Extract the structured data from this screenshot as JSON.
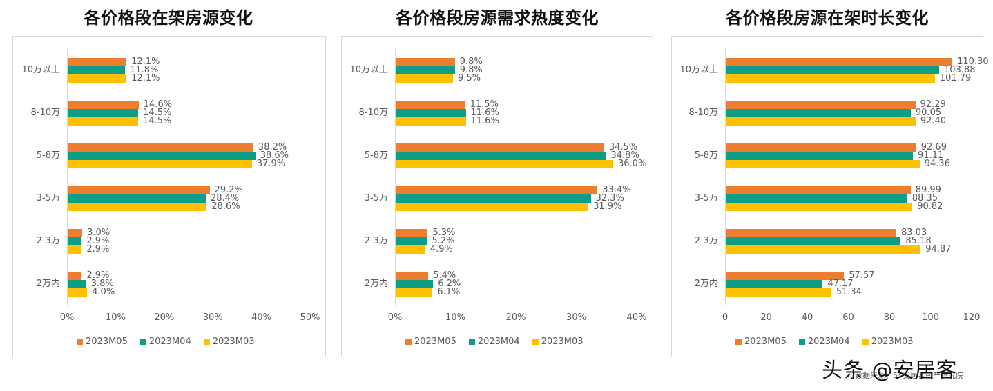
{
  "colors": {
    "2023M05": "#ED7D31",
    "2023M04": "#0E9E87",
    "2023M03": "#FFC000"
  },
  "charts": [
    {
      "title": "各价格段在架房源变化",
      "xticks": [
        "0%",
        "10%",
        "20%",
        "30%",
        "40%",
        "50%"
      ],
      "xmax": 50,
      "categories": [
        "10万以上",
        "8-10万",
        "5-8万",
        "3-5万",
        "2-3万",
        "2万内"
      ],
      "series": [
        {
          "name": "2023M05",
          "values": [
            12.1,
            14.6,
            38.2,
            29.2,
            3.0,
            2.9
          ],
          "labels": [
            "12.1%",
            "14.6%",
            "38.2%",
            "29.2%",
            "3.0%",
            "2.9%"
          ]
        },
        {
          "name": "2023M04",
          "values": [
            11.8,
            14.5,
            38.6,
            28.4,
            2.9,
            3.8
          ],
          "labels": [
            "11.8%",
            "14.5%",
            "38.6%",
            "28.4%",
            "2.9%",
            "3.8%"
          ]
        },
        {
          "name": "2023M03",
          "values": [
            12.1,
            14.5,
            37.9,
            28.6,
            2.9,
            4.0
          ],
          "labels": [
            "12.1%",
            "14.5%",
            "37.9%",
            "28.6%",
            "2.9%",
            "4.0%"
          ]
        }
      ]
    },
    {
      "title": "各价格段房源需求热度变化",
      "xticks": [
        "0%",
        "10%",
        "20%",
        "30%",
        "40%"
      ],
      "xmax": 40,
      "categories": [
        "10万以上",
        "8-10万",
        "5-8万",
        "3-5万",
        "2-3万",
        "2万内"
      ],
      "series": [
        {
          "name": "2023M05",
          "values": [
            9.8,
            11.5,
            34.5,
            33.4,
            5.3,
            5.4
          ],
          "labels": [
            "9.8%",
            "11.5%",
            "34.5%",
            "33.4%",
            "5.3%",
            "5.4%"
          ]
        },
        {
          "name": "2023M04",
          "values": [
            9.8,
            11.6,
            34.8,
            32.3,
            5.2,
            6.2
          ],
          "labels": [
            "9.8%",
            "11.6%",
            "34.8%",
            "32.3%",
            "5.2%",
            "6.2%"
          ]
        },
        {
          "name": "2023M03",
          "values": [
            9.5,
            11.6,
            36.0,
            31.9,
            4.9,
            6.1
          ],
          "labels": [
            "9.5%",
            "11.6%",
            "36.0%",
            "31.9%",
            "4.9%",
            "6.1%"
          ]
        }
      ]
    },
    {
      "title": "各价格段房源在架时长变化",
      "xticks": [
        "0",
        "20",
        "40",
        "60",
        "80",
        "100",
        "120"
      ],
      "xmax": 120,
      "categories": [
        "10万以上",
        "8-10万",
        "5-8万",
        "3-5万",
        "2-3万",
        "2万内"
      ],
      "series": [
        {
          "name": "2023M05",
          "values": [
            110.3,
            92.29,
            92.69,
            89.99,
            83.03,
            57.57
          ],
          "labels": [
            "110.30",
            "92.29",
            "92.69",
            "89.99",
            "83.03",
            "57.57"
          ]
        },
        {
          "name": "2023M04",
          "values": [
            103.88,
            90.05,
            91.11,
            88.35,
            85.18,
            47.17
          ],
          "labels": [
            "103.88",
            "90.05",
            "91.11",
            "88.35",
            "85.18",
            "47.17"
          ]
        },
        {
          "name": "2023M03",
          "values": [
            101.79,
            92.4,
            94.36,
            90.82,
            94.87,
            51.34
          ],
          "labels": [
            "101.79",
            "92.40",
            "94.36",
            "90.82",
            "94.87",
            "51.34"
          ]
        }
      ]
    }
  ],
  "chart_data": [
    {
      "type": "bar",
      "title": "各价格段在架房源变化",
      "orientation": "horizontal",
      "categories": [
        "10万以上",
        "8-10万",
        "5-8万",
        "3-5万",
        "2-3万",
        "2万内"
      ],
      "series": [
        {
          "name": "2023M05",
          "values": [
            12.1,
            14.6,
            38.2,
            29.2,
            3.0,
            2.9
          ]
        },
        {
          "name": "2023M04",
          "values": [
            11.8,
            14.5,
            38.6,
            28.4,
            2.9,
            3.8
          ]
        },
        {
          "name": "2023M03",
          "values": [
            12.1,
            14.5,
            37.9,
            28.6,
            2.9,
            4.0
          ]
        }
      ],
      "xlabel": "",
      "ylabel": "",
      "xlim": [
        0,
        50
      ],
      "unit": "%",
      "xticks": [
        "0%",
        "10%",
        "20%",
        "30%",
        "40%",
        "50%"
      ],
      "legend_position": "bottom",
      "grid": false
    },
    {
      "type": "bar",
      "title": "各价格段房源需求热度变化",
      "orientation": "horizontal",
      "categories": [
        "10万以上",
        "8-10万",
        "5-8万",
        "3-5万",
        "2-3万",
        "2万内"
      ],
      "series": [
        {
          "name": "2023M05",
          "values": [
            9.8,
            11.5,
            34.5,
            33.4,
            5.3,
            5.4
          ]
        },
        {
          "name": "2023M04",
          "values": [
            9.8,
            11.6,
            34.8,
            32.3,
            5.2,
            6.2
          ]
        },
        {
          "name": "2023M03",
          "values": [
            9.5,
            11.6,
            36.0,
            31.9,
            4.9,
            6.1
          ]
        }
      ],
      "xlabel": "",
      "ylabel": "",
      "xlim": [
        0,
        40
      ],
      "unit": "%",
      "xticks": [
        "0%",
        "10%",
        "20%",
        "30%",
        "40%"
      ],
      "legend_position": "bottom",
      "grid": false
    },
    {
      "type": "bar",
      "title": "各价格段房源在架时长变化",
      "orientation": "horizontal",
      "categories": [
        "10万以上",
        "8-10万",
        "5-8万",
        "3-5万",
        "2-3万",
        "2万内"
      ],
      "series": [
        {
          "name": "2023M05",
          "values": [
            110.3,
            92.29,
            92.69,
            89.99,
            83.03,
            57.57
          ]
        },
        {
          "name": "2023M04",
          "values": [
            103.88,
            90.05,
            91.11,
            88.35,
            85.18,
            47.17
          ]
        },
        {
          "name": "2023M03",
          "values": [
            101.79,
            92.4,
            94.36,
            90.82,
            94.87,
            51.34
          ]
        }
      ],
      "xlabel": "",
      "ylabel": "",
      "xlim": [
        0,
        120
      ],
      "xticks": [
        "0",
        "20",
        "40",
        "60",
        "80",
        "100",
        "120"
      ],
      "legend_position": "bottom",
      "grid": false
    }
  ],
  "footer": {
    "watermark": "头条 @安居客",
    "source": "数据来源：58安居客房产研究院"
  }
}
